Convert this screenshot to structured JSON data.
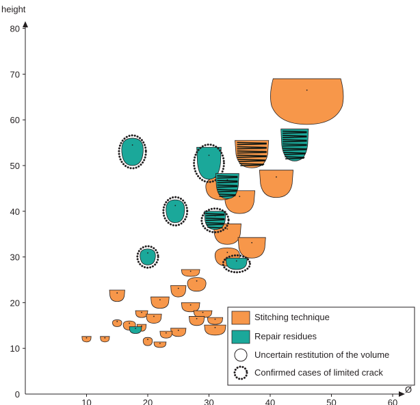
{
  "chart_data": {
    "type": "scatter",
    "xlabel": "Ø",
    "ylabel": "height",
    "xlim": [
      0,
      60
    ],
    "ylim": [
      0,
      80
    ],
    "x_ticks": [
      "10",
      "20",
      "30",
      "40",
      "50",
      "60"
    ],
    "y_ticks": [
      "0",
      "10",
      "20",
      "30",
      "40",
      "50",
      "60",
      "70",
      "80"
    ],
    "legend_position": "bottom-right",
    "colors": {
      "stitching": "#f7974a",
      "repair": "#1ba89a",
      "dark": "#0c1512",
      "outline": "#231f20"
    },
    "legend": [
      {
        "label": "Stitching technique",
        "marker": "orange-square"
      },
      {
        "label": "Repair residues",
        "marker": "teal-square"
      },
      {
        "label": "Uncertain restitution of the volume",
        "marker": "open-circle"
      },
      {
        "label": "Confirmed cases of limited crack",
        "marker": "dotted-circle"
      }
    ],
    "series": [
      {
        "name": "Stitching technique",
        "points": [
          {
            "x": 46,
            "y": 64,
            "w": 12,
            "h": 10,
            "shape": "vessel",
            "dark": false,
            "crack": false
          },
          {
            "x": 41,
            "y": 46,
            "w": 5.5,
            "h": 6,
            "shape": "bowl",
            "dark": false,
            "crack": false
          },
          {
            "x": 37,
            "y": 52.5,
            "w": 5.5,
            "h": 6,
            "shape": "bowl",
            "dark": true,
            "crack": false
          },
          {
            "x": 35,
            "y": 42,
            "w": 5,
            "h": 5,
            "shape": "bowl",
            "dark": false,
            "crack": false
          },
          {
            "x": 32,
            "y": 45,
            "w": 5,
            "h": 5,
            "shape": "round",
            "dark": false,
            "crack": false
          },
          {
            "x": 33,
            "y": 35,
            "w": 4.5,
            "h": 4.5,
            "shape": "bowl",
            "dark": false,
            "crack": false
          },
          {
            "x": 37,
            "y": 32,
            "w": 4.5,
            "h": 4.5,
            "shape": "bowl",
            "dark": false,
            "crack": false
          },
          {
            "x": 33,
            "y": 30,
            "w": 4,
            "h": 4,
            "shape": "round",
            "dark": false,
            "crack": false
          },
          {
            "x": 27,
            "y": 26.5,
            "w": 3,
            "h": 1.5,
            "shape": "bowl",
            "dark": false,
            "crack": false
          },
          {
            "x": 28,
            "y": 24,
            "w": 3,
            "h": 3,
            "shape": "round",
            "dark": false,
            "crack": false
          },
          {
            "x": 25,
            "y": 22.5,
            "w": 2.5,
            "h": 2.5,
            "shape": "bowl",
            "dark": false,
            "crack": false
          },
          {
            "x": 22,
            "y": 20,
            "w": 3,
            "h": 2.5,
            "shape": "bowl",
            "dark": false,
            "crack": false
          },
          {
            "x": 15,
            "y": 21.5,
            "w": 2.5,
            "h": 2.5,
            "shape": "bowl",
            "dark": false,
            "crack": false
          },
          {
            "x": 27,
            "y": 19,
            "w": 3,
            "h": 2,
            "shape": "bowl",
            "dark": false,
            "crack": false
          },
          {
            "x": 29,
            "y": 17.5,
            "w": 3,
            "h": 1.5,
            "shape": "bowl",
            "dark": false,
            "crack": false
          },
          {
            "x": 31,
            "y": 16,
            "w": 2.5,
            "h": 1.5,
            "shape": "bowl",
            "dark": false,
            "crack": false
          },
          {
            "x": 28,
            "y": 16,
            "w": 2.5,
            "h": 2,
            "shape": "bowl",
            "dark": false,
            "crack": false
          },
          {
            "x": 19,
            "y": 17.5,
            "w": 2,
            "h": 1.5,
            "shape": "bowl",
            "dark": false,
            "crack": false
          },
          {
            "x": 21,
            "y": 16.5,
            "w": 2.5,
            "h": 2,
            "shape": "bowl",
            "dark": false,
            "crack": false
          },
          {
            "x": 15,
            "y": 15.5,
            "w": 1.5,
            "h": 1.5,
            "shape": "round",
            "dark": false,
            "crack": false
          },
          {
            "x": 17,
            "y": 15,
            "w": 2,
            "h": 2,
            "shape": "round",
            "dark": false,
            "crack": false
          },
          {
            "x": 19,
            "y": 14.5,
            "w": 1.5,
            "h": 1.5,
            "shape": "bowl",
            "dark": false,
            "crack": false
          },
          {
            "x": 25,
            "y": 13.5,
            "w": 2.5,
            "h": 1.8,
            "shape": "bowl",
            "dark": false,
            "crack": false
          },
          {
            "x": 31,
            "y": 14,
            "w": 3.5,
            "h": 2.2,
            "shape": "bowl",
            "dark": false,
            "crack": false
          },
          {
            "x": 23,
            "y": 13,
            "w": 2,
            "h": 1.5,
            "shape": "bowl",
            "dark": false,
            "crack": false
          },
          {
            "x": 20,
            "y": 11.5,
            "w": 1.5,
            "h": 1.8,
            "shape": "round",
            "dark": false,
            "crack": false
          },
          {
            "x": 22,
            "y": 10.8,
            "w": 2,
            "h": 1.2,
            "shape": "bowl",
            "dark": false,
            "crack": false
          },
          {
            "x": 10,
            "y": 12,
            "w": 1.5,
            "h": 1.2,
            "shape": "bowl",
            "dark": false,
            "crack": false
          },
          {
            "x": 13,
            "y": 12,
            "w": 1.5,
            "h": 1.2,
            "shape": "bowl",
            "dark": false,
            "crack": false
          }
        ]
      },
      {
        "name": "Repair residues",
        "points": [
          {
            "x": 17.5,
            "y": 53,
            "w": 3.5,
            "h": 6,
            "shape": "round",
            "dark": false,
            "crack": true
          },
          {
            "x": 30,
            "y": 50.5,
            "w": 4,
            "h": 7,
            "shape": "bowl",
            "dark": false,
            "crack": true
          },
          {
            "x": 44,
            "y": 54.5,
            "w": 4.5,
            "h": 7,
            "shape": "bowl",
            "dark": true,
            "crack": false
          },
          {
            "x": 33,
            "y": 45.5,
            "w": 3.8,
            "h": 5.5,
            "shape": "bowl",
            "dark": true,
            "crack": false
          },
          {
            "x": 24.5,
            "y": 40,
            "w": 3,
            "h": 5,
            "shape": "round",
            "dark": false,
            "crack": true
          },
          {
            "x": 31,
            "y": 38,
            "w": 3.5,
            "h": 4,
            "shape": "bowl",
            "dark": true,
            "crack": true
          },
          {
            "x": 20,
            "y": 30,
            "w": 2.5,
            "h": 3.5,
            "shape": "round",
            "dark": false,
            "crack": true
          },
          {
            "x": 34.5,
            "y": 28.5,
            "w": 3.5,
            "h": 2.5,
            "shape": "bowl",
            "dark": false,
            "crack": true
          },
          {
            "x": 18,
            "y": 14,
            "w": 2,
            "h": 1.5,
            "shape": "bowl",
            "dark": false,
            "crack": false
          }
        ]
      }
    ]
  }
}
